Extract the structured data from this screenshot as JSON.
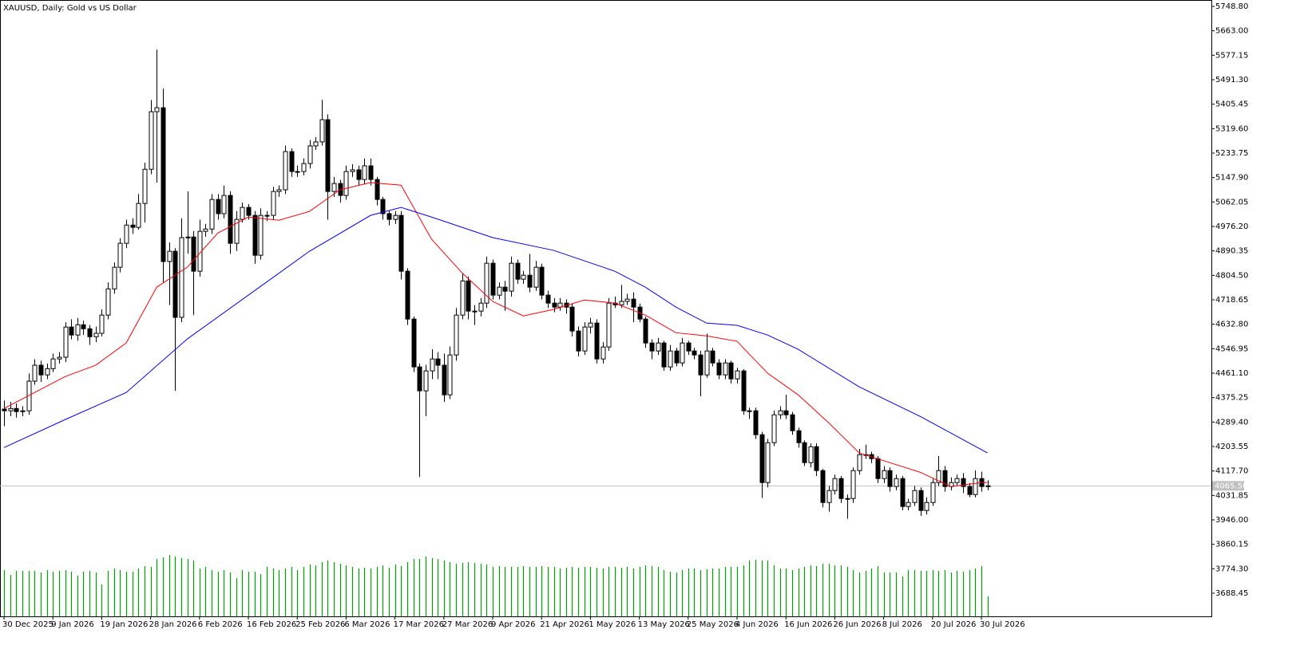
{
  "chart_data": {
    "type": "candlestick",
    "title": "XAUUSD, Daily:  Gold vs US Dollar",
    "x_labels": [
      "30 Dec 2025",
      "9 Jan 2026",
      "19 Jan 2026",
      "28 Jan 2026",
      "6 Feb 2026",
      "16 Feb 2026",
      "25 Feb 2026",
      "6 Mar 2026",
      "17 Mar 2026",
      "27 Mar 2026",
      "9 Apr 2026",
      "21 Apr 2026",
      "1 May 2026",
      "13 May 2026",
      "25 May 2026",
      "4 Jun 2026",
      "16 Jun 2026",
      "26 Jun 2026",
      "8 Jul 2026",
      "20 Jul 2026",
      "30 Jul 2026"
    ],
    "open": [
      4335,
      4329,
      4337,
      4326,
      4329,
      4433,
      4489,
      4455,
      4477,
      4511,
      4517,
      4623,
      4595,
      4631,
      4617,
      4589,
      4601,
      4665,
      4757,
      4833,
      4917,
      4981,
      4973,
      5057,
      5177,
      5379,
      5393,
      4853,
      4889,
      4657,
      4937,
      4939,
      4819,
      4959,
      4967,
      5071,
      5021,
      5085,
      4917,
      5001,
      5043,
      5015,
      4875,
      5015,
      5015,
      5099,
      5105,
      5239,
      5169,
      5169,
      5197,
      5259,
      5273,
      5351,
      5099,
      5127,
      5085,
      5169,
      5175,
      5141,
      5189,
      5141,
      5071,
      5021,
      5001,
      5015,
      4819,
      4651,
      4483,
      4399,
      4469,
      4511,
      4489,
      4385,
      4525,
      4665,
      4785,
      4679,
      4679,
      4707,
      4847,
      4735,
      4763,
      4749,
      4847,
      4791,
      4805,
      4763,
      4833,
      4735,
      4707,
      4693,
      4707,
      4693,
      4609,
      4539,
      4623,
      4637,
      4511,
      4553,
      4707,
      4701,
      4713,
      4721,
      4693,
      4651,
      4567,
      4539,
      4567,
      4483,
      4539,
      4497,
      4567,
      4539,
      4525,
      4455,
      4539,
      4497,
      4455,
      4497,
      4441,
      4469,
      4329,
      4329,
      4245,
      4077,
      4217,
      4315,
      4329,
      4315,
      4259,
      4217,
      4147,
      4203,
      4119,
      4007,
      4049,
      4091,
      4021,
      4021,
      4119,
      4175,
      4175,
      4161,
      4091,
      4119,
      4063,
      4091,
      3993,
      4007,
      4049,
      3979,
      4007,
      4077,
      4119,
      4063,
      4077,
      4091,
      4063,
      4035,
      4091,
      4063
    ],
    "high": [
      4365,
      4360,
      4355,
      4345,
      4460,
      4510,
      4505,
      4495,
      4530,
      4535,
      4640,
      4650,
      4655,
      4645,
      4630,
      4625,
      4685,
      4780,
      4850,
      4935,
      5000,
      5005,
      5090,
      5200,
      5420,
      5597,
      5460,
      4920,
      4900,
      5005,
      5099,
      4960,
      5000,
      4985,
      5090,
      5090,
      5120,
      5100,
      5030,
      5060,
      5055,
      5030,
      5040,
      5030,
      5115,
      5120,
      5260,
      5250,
      5190,
      5215,
      5280,
      5290,
      5421,
      5370,
      5150,
      5140,
      5190,
      5195,
      5190,
      5215,
      5215,
      5150,
      5080,
      5030,
      5030,
      5030,
      4830,
      4660,
      4495,
      4490,
      4545,
      4535,
      4530,
      4555,
      4690,
      4810,
      4800,
      4700,
      4725,
      4870,
      4860,
      4780,
      4785,
      4870,
      4860,
      4820,
      4880,
      4855,
      4845,
      4750,
      4725,
      4725,
      4720,
      4705,
      4625,
      4640,
      4655,
      4650,
      4570,
      4725,
      4730,
      4771,
      4740,
      4745,
      4705,
      4660,
      4580,
      4585,
      4575,
      4560,
      4550,
      4585,
      4575,
      4550,
      4540,
      4600,
      4550,
      4510,
      4510,
      4505,
      4480,
      4475,
      4340,
      4340,
      4255,
      4230,
      4330,
      4345,
      4385,
      4325,
      4270,
      4225,
      4215,
      4215,
      4125,
      4065,
      4105,
      4100,
      4035,
      4130,
      4195,
      4210,
      4185,
      4170,
      4135,
      4130,
      4105,
      4100,
      4020,
      4065,
      4060,
      4025,
      4090,
      4170,
      4135,
      4095,
      4105,
      4110,
      4075,
      4120,
      4115,
      4085
    ],
    "low": [
      4275,
      4310,
      4305,
      4310,
      4315,
      4420,
      4430,
      4440,
      4465,
      4495,
      4500,
      4580,
      4575,
      4595,
      4560,
      4570,
      4590,
      4650,
      4740,
      4815,
      4900,
      4950,
      4965,
      4990,
      5160,
      5130,
      4780,
      4700,
      4399,
      4640,
      4880,
      4665,
      4800,
      4940,
      4950,
      5000,
      5005,
      4880,
      4890,
      4990,
      5000,
      4845,
      4860,
      4995,
      5000,
      5080,
      5090,
      5150,
      5150,
      5155,
      5180,
      5245,
      5260,
      5000,
      5080,
      5060,
      5070,
      5150,
      5120,
      5125,
      5120,
      5050,
      5000,
      4980,
      4985,
      4790,
      4630,
      4465,
      4097,
      4310,
      4440,
      4440,
      4360,
      4370,
      4505,
      4650,
      4650,
      4630,
      4660,
      4690,
      4720,
      4720,
      4680,
      4730,
      4775,
      4775,
      4745,
      4750,
      4720,
      4690,
      4675,
      4680,
      4670,
      4590,
      4520,
      4525,
      4600,
      4495,
      4495,
      4540,
      4690,
      4690,
      4700,
      4640,
      4640,
      4550,
      4510,
      4525,
      4470,
      4470,
      4485,
      4485,
      4525,
      4510,
      4380,
      4445,
      4485,
      4440,
      4440,
      4425,
      4425,
      4315,
      4300,
      4230,
      4023,
      4060,
      4205,
      4300,
      4300,
      4245,
      4200,
      4135,
      4130,
      4100,
      3990,
      3975,
      4035,
      4005,
      3950,
      4005,
      4105,
      4160,
      4145,
      4075,
      4075,
      4045,
      4050,
      3980,
      3980,
      3995,
      3960,
      3965,
      3995,
      4065,
      4045,
      4050,
      4065,
      4040,
      4025,
      4025,
      4045,
      4050
    ],
    "close": [
      4329,
      4337,
      4326,
      4329,
      4433,
      4489,
      4455,
      4477,
      4511,
      4517,
      4623,
      4595,
      4631,
      4617,
      4589,
      4601,
      4665,
      4757,
      4833,
      4917,
      4981,
      4973,
      5057,
      5177,
      5379,
      5393,
      4853,
      4889,
      4657,
      4937,
      4939,
      4819,
      4959,
      4967,
      5071,
      5021,
      5085,
      4917,
      5001,
      5043,
      5015,
      4875,
      5015,
      5015,
      5099,
      5105,
      5239,
      5169,
      5169,
      5197,
      5259,
      5273,
      5351,
      5099,
      5127,
      5085,
      5169,
      5175,
      5141,
      5189,
      5141,
      5071,
      5021,
      5001,
      5015,
      4819,
      4651,
      4483,
      4399,
      4469,
      4511,
      4489,
      4385,
      4525,
      4665,
      4785,
      4679,
      4679,
      4707,
      4847,
      4735,
      4763,
      4749,
      4847,
      4791,
      4805,
      4763,
      4833,
      4735,
      4707,
      4693,
      4707,
      4693,
      4609,
      4539,
      4623,
      4637,
      4511,
      4553,
      4707,
      4701,
      4713,
      4721,
      4693,
      4651,
      4567,
      4539,
      4567,
      4483,
      4539,
      4497,
      4567,
      4539,
      4525,
      4455,
      4539,
      4497,
      4455,
      4497,
      4441,
      4469,
      4329,
      4329,
      4245,
      4077,
      4217,
      4315,
      4329,
      4315,
      4259,
      4217,
      4147,
      4203,
      4119,
      4007,
      4049,
      4091,
      4021,
      4021,
      4119,
      4175,
      4175,
      4161,
      4091,
      4119,
      4063,
      4091,
      3993,
      4007,
      4049,
      3979,
      4007,
      4077,
      4119,
      4063,
      4077,
      4091,
      4063,
      4035,
      4091,
      4063,
      4065.5
    ],
    "volume": [
      58,
      52,
      57,
      57,
      57,
      57,
      55,
      58,
      56,
      57,
      58,
      56,
      51,
      56,
      57,
      55,
      40,
      57,
      60,
      58,
      56,
      56,
      60,
      63,
      62,
      72,
      74,
      77,
      75,
      73,
      72,
      70,
      60,
      62,
      58,
      56,
      58,
      55,
      48,
      58,
      56,
      56,
      53,
      62,
      60,
      58,
      60,
      62,
      58,
      62,
      65,
      64,
      68,
      70,
      68,
      66,
      64,
      62,
      60,
      61,
      60,
      62,
      64,
      61,
      65,
      63,
      68,
      72,
      72,
      75,
      73,
      72,
      70,
      68,
      66,
      67,
      68,
      67,
      66,
      65,
      62,
      63,
      62,
      62,
      62,
      63,
      62,
      62,
      63,
      62,
      62,
      60,
      61,
      62,
      61,
      62,
      62,
      61,
      60,
      62,
      62,
      61,
      62,
      60,
      62,
      64,
      63,
      62,
      58,
      56,
      55,
      58,
      60,
      60,
      58,
      59,
      60,
      60,
      62,
      62,
      62,
      64,
      70,
      71,
      70,
      70,
      64,
      60,
      60,
      58,
      60,
      62,
      64,
      63,
      66,
      66,
      64,
      64,
      62,
      58,
      55,
      57,
      60,
      63,
      55,
      55,
      55,
      50,
      58,
      58,
      57,
      57,
      58,
      57,
      58,
      55,
      57,
      56,
      58,
      60,
      63,
      25
    ],
    "bull_color": "#ffffff",
    "bear_color": "#000000",
    "volume_color": "#00a000",
    "ma": [
      {
        "color": "#ff0000",
        "x": [
          0,
          5,
          10,
          15,
          20,
          25,
          30,
          35,
          40,
          45,
          50,
          55,
          60,
          65,
          70,
          75,
          80,
          85,
          90,
          95,
          100,
          105,
          110,
          115,
          120,
          125,
          130,
          135,
          140,
          145,
          150,
          155,
          160,
          161
        ],
        "values": [
          4337,
          4393,
          4449,
          4489,
          4567,
          4763,
          4833,
          4953,
          5009,
          4998,
          5029,
          5105,
          5130,
          5121,
          4931,
          4813,
          4713,
          4662,
          4685,
          4718,
          4707,
          4665,
          4603,
          4592,
          4573,
          4461,
          4385,
          4287,
          4181,
          4147,
          4113,
          4063,
          4077,
          4077
        ]
      },
      {
        "color": "#0000ff",
        "x": [
          0,
          10,
          20,
          30,
          40,
          50,
          60,
          65,
          70,
          80,
          90,
          100,
          105,
          110,
          115,
          120,
          125,
          130,
          140,
          150,
          161
        ],
        "values": [
          4200,
          4298,
          4393,
          4581,
          4735,
          4889,
          5015,
          5043,
          5009,
          4937,
          4892,
          4819,
          4763,
          4693,
          4637,
          4629,
          4595,
          4545,
          4413,
          4309,
          4181
        ]
      }
    ],
    "ylim": [
      3607.3,
      5771.2
    ],
    "yticks": [
      {
        "value": 5748.8,
        "label": "5748.80"
      },
      {
        "value": 5663,
        "label": "5663.00"
      },
      {
        "value": 5577.15,
        "label": "5577.15"
      },
      {
        "value": 5491.3,
        "label": "5491.30"
      },
      {
        "value": 5405.45,
        "label": "5405.45"
      },
      {
        "value": 5319.6,
        "label": "5319.60"
      },
      {
        "value": 5233.75,
        "label": "5233.75"
      },
      {
        "value": 5147.9,
        "label": "5147.90"
      },
      {
        "value": 5062.05,
        "label": "5062.05"
      },
      {
        "value": 4976.2,
        "label": "4976.20"
      },
      {
        "value": 4890.35,
        "label": "4890.35"
      },
      {
        "value": 4804.5,
        "label": "4804.50"
      },
      {
        "value": 4718.65,
        "label": "4718.65"
      },
      {
        "value": 4632.8,
        "label": "4632.80"
      },
      {
        "value": 4546.95,
        "label": "4546.95"
      },
      {
        "value": 4461.1,
        "label": "4461.10"
      },
      {
        "value": 4375.25,
        "label": "4375.25"
      },
      {
        "value": 4289.4,
        "label": "4289.40"
      },
      {
        "value": 4203.55,
        "label": "4203.55"
      },
      {
        "value": 4117.7,
        "label": "4117.70"
      },
      {
        "value": 4031.85,
        "label": "4031.85"
      },
      {
        "value": 3946,
        "label": "3946.00"
      },
      {
        "value": 3860.15,
        "label": "3860.15"
      },
      {
        "value": 3774.3,
        "label": "3774.30"
      },
      {
        "value": 3688.45,
        "label": "3688.45"
      }
    ],
    "last_price": {
      "value": 4065.5,
      "label": "4065.50"
    }
  }
}
